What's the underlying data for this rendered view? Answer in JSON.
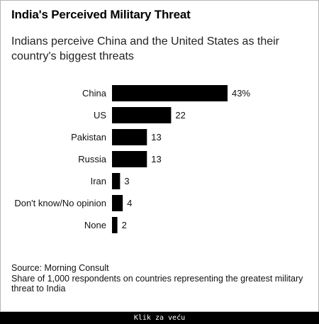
{
  "title": "India's Perceived Military Threat",
  "subtitle": "Indians perceive China and the United States as their country's biggest threats",
  "source": "Source: Morning Consult",
  "note": "Share of 1,000 respondents on countries representing the greatest military threat to India",
  "footer_link": "Klik za veću",
  "bar_color": "#000000",
  "chart_data": {
    "type": "bar",
    "orientation": "horizontal",
    "categories": [
      "China",
      "US",
      "Pakistan",
      "Russia",
      "Iran",
      "Don't know/No opinion",
      "None"
    ],
    "values": [
      43,
      22,
      13,
      13,
      3,
      4,
      2
    ],
    "value_labels": [
      "43%",
      "22",
      "13",
      "13",
      "3",
      "4",
      "2"
    ],
    "xlim": [
      0,
      43
    ],
    "unit": "%",
    "grid": false,
    "legend": "none"
  }
}
